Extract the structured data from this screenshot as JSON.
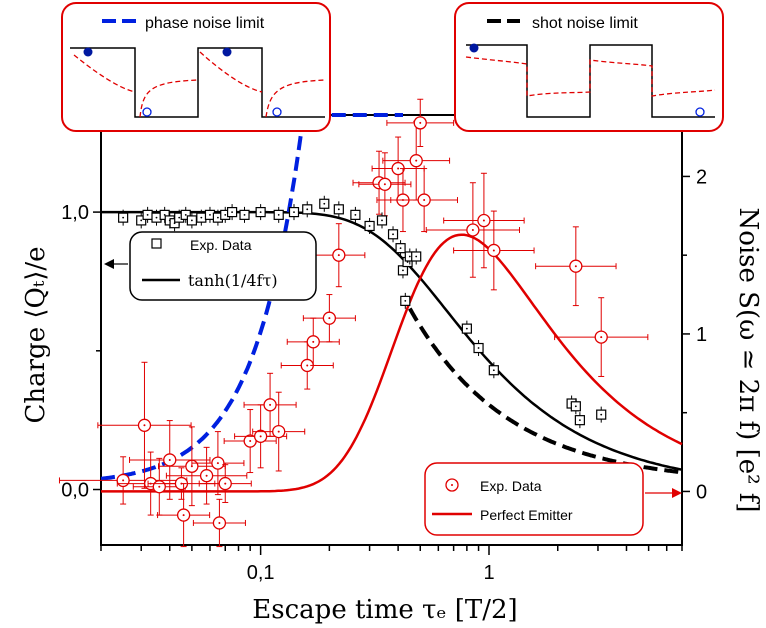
{
  "chart_data": {
    "type": "scatter",
    "x_scale": "log",
    "xlim": [
      0.02,
      7
    ],
    "ylim_left": [
      -0.2,
      1.35
    ],
    "ylim_right": [
      -0.34,
      2.39
    ],
    "xlabel": "Escape time τₑ    [T/2]",
    "ylabel_left": "Charge ⟨Qₜ⟩/e",
    "ylabel_right": "Noise S(ω ≃ 2π f)   [e² f]",
    "x_ticks": [
      {
        "v": 0.1,
        "label": "0,1"
      },
      {
        "v": 1,
        "label": "1"
      }
    ],
    "y_ticks_left": [
      {
        "v": 0,
        "label": "0,0"
      },
      {
        "v": 1,
        "label": "1,0"
      }
    ],
    "y_ticks_right": [
      {
        "v": 0,
        "label": "0"
      },
      {
        "v": 1,
        "label": "1"
      },
      {
        "v": 2,
        "label": "2"
      }
    ],
    "colors": {
      "charge": "#000000",
      "noise": "#e00000",
      "phase": "#0020e0",
      "shot": "#000000",
      "box": "#e00000"
    },
    "legend_charge": {
      "placement": "left-middle",
      "entries": [
        "Exp. Data",
        "tanh(1/4fτ)"
      ]
    },
    "legend_noise": {
      "placement": "bottom-right",
      "entries": [
        "Exp. Data",
        "Perfect Emitter"
      ]
    },
    "inset_left_label": "phase noise limit",
    "inset_right_label": "shot noise limit",
    "series": [
      {
        "name": "Exp. Data",
        "axis": "left",
        "kind": "points",
        "marker": "square",
        "points": [
          [
            0.025,
            0.98
          ],
          [
            0.03,
            0.97
          ],
          [
            0.032,
            0.99
          ],
          [
            0.035,
            0.98
          ],
          [
            0.038,
            0.99
          ],
          [
            0.04,
            0.97
          ],
          [
            0.042,
            0.96
          ],
          [
            0.044,
            0.98
          ],
          [
            0.047,
            0.99
          ],
          [
            0.05,
            0.97
          ],
          [
            0.055,
            0.98
          ],
          [
            0.06,
            0.99
          ],
          [
            0.065,
            0.98
          ],
          [
            0.07,
            0.99
          ],
          [
            0.075,
            1.0
          ],
          [
            0.085,
            0.99
          ],
          [
            0.1,
            1.0
          ],
          [
            0.12,
            0.99
          ],
          [
            0.14,
            1.0
          ],
          [
            0.16,
            1.01
          ],
          [
            0.19,
            1.03
          ],
          [
            0.22,
            1.01
          ],
          [
            0.26,
            0.99
          ],
          [
            0.3,
            0.95
          ],
          [
            0.34,
            0.97
          ],
          [
            0.38,
            0.92
          ],
          [
            0.41,
            0.87
          ],
          [
            0.42,
            0.79
          ],
          [
            0.43,
            0.68
          ],
          [
            0.44,
            0.82
          ],
          [
            0.45,
            0.84
          ],
          [
            0.48,
            0.84
          ],
          [
            0.8,
            0.58
          ],
          [
            0.9,
            0.51
          ],
          [
            1.05,
            0.43
          ],
          [
            2.3,
            0.31
          ],
          [
            2.4,
            0.3
          ],
          [
            2.5,
            0.25
          ],
          [
            3.1,
            0.27
          ]
        ]
      },
      {
        "name": "tanh(1/4fτ)",
        "axis": "left",
        "kind": "line",
        "func": "tanh"
      },
      {
        "name": "Exp. Data",
        "axis": "right",
        "kind": "points",
        "marker": "circle",
        "points": [
          [
            0.025,
            0.07,
            1.9,
            0.15
          ],
          [
            0.031,
            0.42,
            1.6,
            0.4
          ],
          [
            0.033,
            0.05,
            1.4,
            0.2
          ],
          [
            0.036,
            0.03,
            1.3,
            0.18
          ],
          [
            0.04,
            0.2,
            1.5,
            0.25
          ],
          [
            0.045,
            0.05,
            1.4,
            0.1
          ],
          [
            0.046,
            -0.15,
            1.3,
            0.2
          ],
          [
            0.05,
            0.16,
            1.4,
            0.25
          ],
          [
            0.058,
            0.1,
            1.5,
            0.18
          ],
          [
            0.065,
            0.18,
            1.3,
            0.2
          ],
          [
            0.066,
            -0.2,
            1.3,
            0.15
          ],
          [
            0.07,
            0.05,
            1.3,
            0.12
          ],
          [
            0.09,
            0.32,
            1.3,
            0.2
          ],
          [
            0.1,
            0.35,
            1.3,
            0.2
          ],
          [
            0.11,
            0.55,
            1.3,
            0.2
          ],
          [
            0.12,
            0.38,
            1.3,
            0.25
          ],
          [
            0.16,
            0.8,
            1.3,
            0.15
          ],
          [
            0.17,
            0.95,
            1.3,
            0.15
          ],
          [
            0.2,
            1.1,
            1.3,
            0.15
          ],
          [
            0.22,
            1.5,
            1.3,
            0.2
          ],
          [
            0.33,
            1.96,
            1.3,
            0.2
          ],
          [
            0.35,
            1.95,
            1.3,
            0.2
          ],
          [
            0.4,
            2.05,
            1.3,
            0.2
          ],
          [
            0.42,
            1.85,
            1.3,
            0.2
          ],
          [
            0.48,
            2.1,
            1.4,
            0.25
          ],
          [
            0.5,
            2.34,
            1.4,
            0.15
          ],
          [
            0.52,
            1.85,
            1.4,
            0.2
          ],
          [
            0.85,
            1.66,
            1.6,
            0.3
          ],
          [
            0.95,
            1.72,
            1.5,
            0.3
          ],
          [
            1.05,
            1.53,
            1.5,
            0.25
          ],
          [
            2.4,
            1.43,
            1.5,
            0.25
          ],
          [
            3.1,
            0.98,
            1.6,
            0.25
          ]
        ]
      },
      {
        "name": "Perfect Emitter",
        "axis": "right",
        "kind": "line",
        "func": "emitter"
      },
      {
        "name": "phase noise limit",
        "axis": "right",
        "kind": "line",
        "func": "phase",
        "dash": true
      },
      {
        "name": "shot noise limit",
        "axis": "right",
        "kind": "line",
        "func": "shot",
        "dash": true
      }
    ]
  }
}
